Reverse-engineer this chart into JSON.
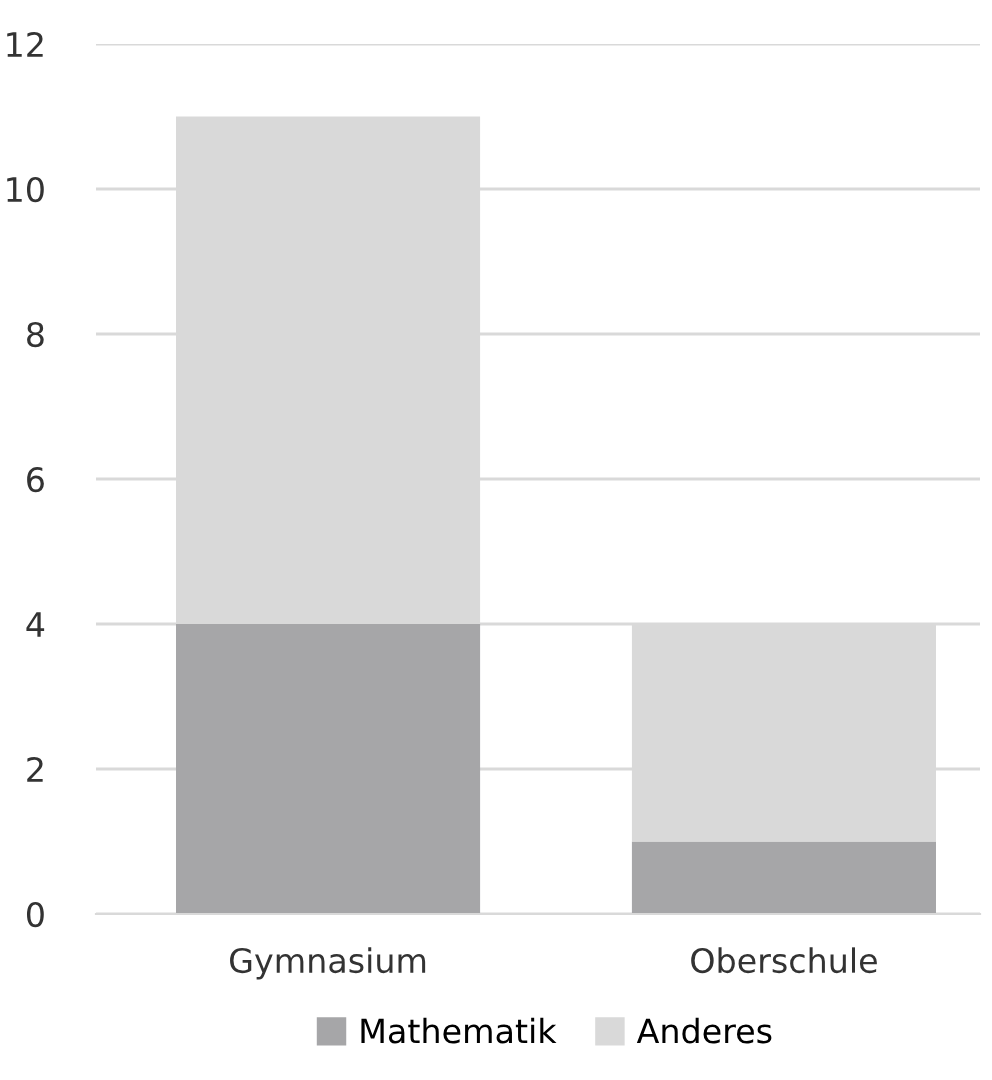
{
  "chart_data": {
    "type": "bar",
    "stacked": true,
    "categories": [
      "Gymnasium",
      "Oberschule"
    ],
    "series": [
      {
        "name": "Mathematik",
        "color": "#a6a6a8",
        "values": [
          4,
          1
        ]
      },
      {
        "name": "Anderes",
        "color": "#d9d9d9",
        "values": [
          7,
          3
        ]
      }
    ],
    "ylim": [
      0,
      12
    ],
    "yticks": [
      0,
      2,
      4,
      6,
      8,
      10,
      12
    ],
    "grid": "y",
    "legend": "bottom"
  }
}
